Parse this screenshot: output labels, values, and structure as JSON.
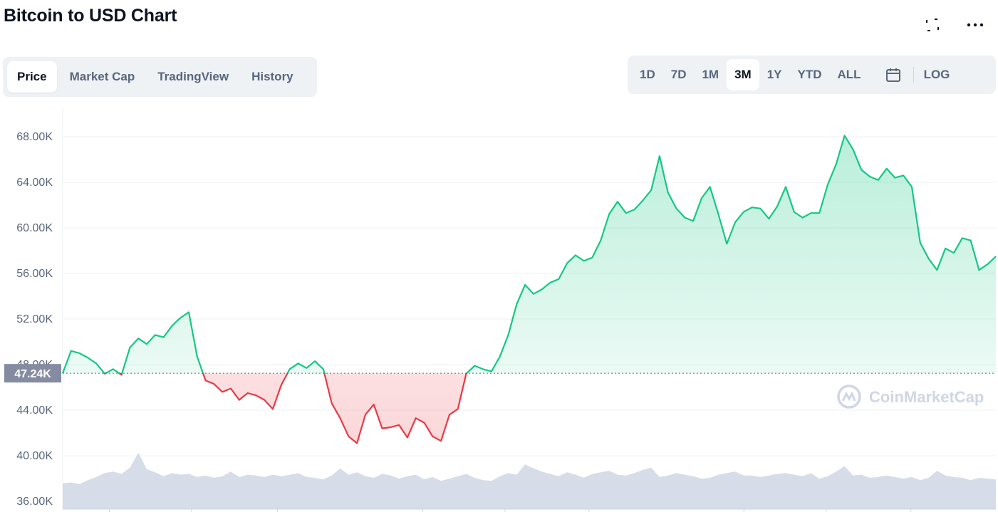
{
  "header": {
    "title": "Bitcoin to USD Chart"
  },
  "icons": {
    "fullscreen": "fullscreen-icon",
    "more": "more-horizontal-icon",
    "calendar": "calendar-icon",
    "brand": "coinmarketcap-logo-icon"
  },
  "tabs": [
    {
      "label": "Price",
      "active": true
    },
    {
      "label": "Market Cap",
      "active": false
    },
    {
      "label": "TradingView",
      "active": false
    },
    {
      "label": "History",
      "active": false
    }
  ],
  "ranges": [
    {
      "label": "1D",
      "active": false
    },
    {
      "label": "7D",
      "active": false
    },
    {
      "label": "1M",
      "active": false
    },
    {
      "label": "3M",
      "active": true
    },
    {
      "label": "1Y",
      "active": false
    },
    {
      "label": "YTD",
      "active": false
    },
    {
      "label": "ALL",
      "active": false
    }
  ],
  "log_label": "LOG",
  "colors": {
    "up": "#16c784",
    "down": "#ea3943",
    "volume": "#cfd6e4",
    "grid": "#eff2f5",
    "axis_text": "#58667e",
    "current_label_bg": "#858ca2"
  },
  "chart_data": {
    "type": "area",
    "y_axis": {
      "min": 36000,
      "max": 70000,
      "ticks": [
        {
          "value": 68000,
          "label": "68.00K"
        },
        {
          "value": 64000,
          "label": "64.00K"
        },
        {
          "value": 60000,
          "label": "60.00K"
        },
        {
          "value": 56000,
          "label": "56.00K"
        },
        {
          "value": 52000,
          "label": "52.00K"
        },
        {
          "value": 48000,
          "label": "48.00K"
        },
        {
          "value": 44000,
          "label": "44.00K"
        },
        {
          "value": 40000,
          "label": "40.00K"
        },
        {
          "value": 36000,
          "label": "36.00K"
        }
      ]
    },
    "baseline": {
      "value": 47240,
      "label": "47.24K"
    },
    "grid": true,
    "series": [
      {
        "values": [
          47240,
          49200,
          49000,
          48600,
          48100,
          47200,
          47600,
          47100,
          49500,
          50300,
          49800,
          50600,
          50400,
          51400,
          52100,
          52600,
          48700,
          46600,
          46300,
          45600,
          45900,
          44900,
          45500,
          45300,
          44900,
          44100,
          46200,
          47600,
          48100,
          47700,
          48300,
          47600,
          44600,
          43300,
          41700,
          41100,
          43600,
          44500,
          42400,
          42500,
          42700,
          41600,
          43300,
          42900,
          41700,
          41300,
          43600,
          44100,
          47200,
          47900,
          47600,
          47400,
          48700,
          50600,
          53300,
          55000,
          54200,
          54600,
          55200,
          55500,
          56900,
          57600,
          57100,
          57400,
          58900,
          61200,
          62300,
          61300,
          61600,
          62400,
          63300,
          66300,
          63100,
          61700,
          60900,
          60600,
          62600,
          63600,
          61200,
          58600,
          60500,
          61400,
          61800,
          61700,
          60800,
          61900,
          63600,
          61400,
          60900,
          61300,
          61300,
          63800,
          65600,
          68100,
          66900,
          65100,
          64500,
          64200,
          65200,
          64400,
          64600,
          63600,
          58700,
          57300,
          56300,
          58200,
          57800,
          59100,
          58900,
          56300,
          56800,
          57500
        ]
      }
    ],
    "volume": [
      0.33,
      0.34,
      0.32,
      0.37,
      0.41,
      0.46,
      0.48,
      0.45,
      0.53,
      0.72,
      0.51,
      0.47,
      0.42,
      0.46,
      0.44,
      0.45,
      0.41,
      0.43,
      0.4,
      0.42,
      0.48,
      0.41,
      0.44,
      0.43,
      0.41,
      0.44,
      0.42,
      0.44,
      0.46,
      0.41,
      0.4,
      0.38,
      0.43,
      0.52,
      0.44,
      0.47,
      0.42,
      0.4,
      0.45,
      0.43,
      0.39,
      0.42,
      0.44,
      0.38,
      0.41,
      0.36,
      0.39,
      0.42,
      0.45,
      0.4,
      0.37,
      0.36,
      0.42,
      0.46,
      0.44,
      0.57,
      0.52,
      0.48,
      0.45,
      0.42,
      0.47,
      0.44,
      0.4,
      0.45,
      0.47,
      0.49,
      0.44,
      0.43,
      0.46,
      0.5,
      0.53,
      0.41,
      0.43,
      0.46,
      0.44,
      0.42,
      0.39,
      0.4,
      0.44,
      0.46,
      0.48,
      0.43,
      0.43,
      0.41,
      0.43,
      0.45,
      0.46,
      0.44,
      0.42,
      0.46,
      0.39,
      0.42,
      0.48,
      0.55,
      0.43,
      0.44,
      0.4,
      0.41,
      0.43,
      0.41,
      0.39,
      0.41,
      0.37,
      0.4,
      0.49,
      0.43,
      0.41,
      0.4,
      0.37,
      0.4,
      0.39,
      0.38
    ]
  }
}
